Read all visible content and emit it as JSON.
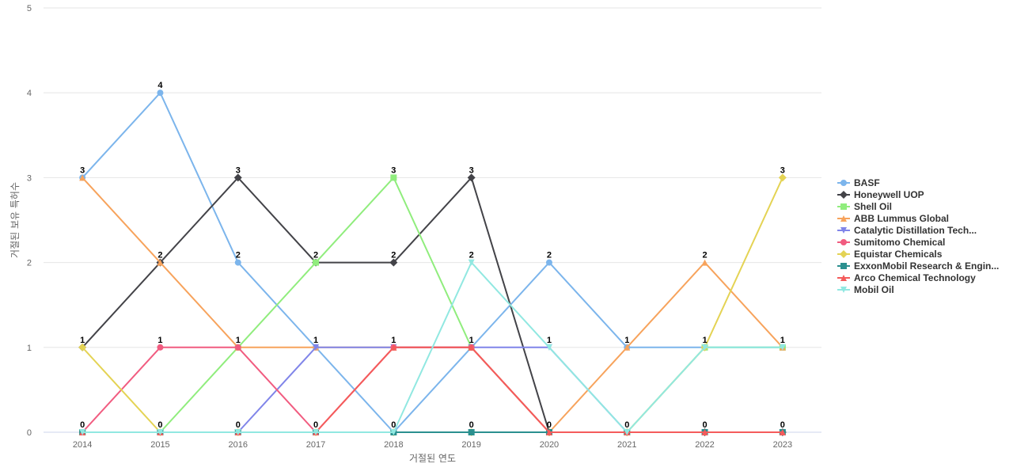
{
  "chart_data": {
    "type": "line",
    "title": "",
    "xlabel": "거절된 연도",
    "ylabel": "거절된 보유 특허수",
    "x": [
      "2014",
      "2015",
      "2016",
      "2017",
      "2018",
      "2019",
      "2020",
      "2021",
      "2022",
      "2023"
    ],
    "ylim": [
      0,
      5
    ],
    "yticks": [
      0,
      1,
      2,
      3,
      4,
      5
    ],
    "grid": true,
    "legend": "right",
    "series": [
      {
        "name": "BASF",
        "color": "#7cb5ec",
        "marker": "circle",
        "values": [
          3,
          4,
          2,
          1,
          0,
          1,
          2,
          1,
          1,
          1
        ]
      },
      {
        "name": "Honeywell UOP",
        "color": "#434348",
        "marker": "diamond",
        "values": [
          1,
          2,
          3,
          2,
          2,
          3,
          0,
          0,
          0,
          0
        ]
      },
      {
        "name": "Shell Oil",
        "color": "#90ed7d",
        "marker": "square",
        "values": [
          0,
          0,
          1,
          2,
          3,
          1,
          0,
          0,
          1,
          1
        ]
      },
      {
        "name": "ABB Lummus Global",
        "color": "#f7a35c",
        "marker": "triangle",
        "values": [
          3,
          2,
          1,
          1,
          1,
          1,
          0,
          1,
          2,
          1
        ]
      },
      {
        "name": "Catalytic Distillation Tech...",
        "color": "#8085e9",
        "marker": "triangle-down",
        "values": [
          0,
          0,
          0,
          1,
          1,
          1,
          1,
          0,
          0,
          0
        ]
      },
      {
        "name": "Sumitomo Chemical",
        "color": "#f15c80",
        "marker": "circle",
        "values": [
          0,
          1,
          1,
          0,
          1,
          1,
          0,
          0,
          0,
          0
        ]
      },
      {
        "name": "Equistar Chemicals",
        "color": "#e4d354",
        "marker": "diamond",
        "values": [
          1,
          0,
          0,
          0,
          0,
          0,
          0,
          0,
          1,
          3
        ]
      },
      {
        "name": "ExxonMobil Research & Engin...",
        "color": "#2b908f",
        "marker": "square",
        "values": [
          0,
          0,
          0,
          0,
          0,
          0,
          0,
          0,
          0,
          0
        ]
      },
      {
        "name": "Arco Chemical Technology",
        "color": "#f45b5b",
        "marker": "triangle",
        "values": [
          0,
          0,
          0,
          0,
          1,
          1,
          0,
          0,
          0,
          0
        ]
      },
      {
        "name": "Mobil Oil",
        "color": "#91e8e1",
        "marker": "triangle-down",
        "values": [
          0,
          0,
          0,
          0,
          0,
          2,
          1,
          0,
          1,
          1
        ]
      }
    ],
    "data_labels": [
      {
        "x": "2014",
        "value": 3
      },
      {
        "x": "2014",
        "value": 1
      },
      {
        "x": "2014",
        "value": 0
      },
      {
        "x": "2015",
        "value": 4
      },
      {
        "x": "2015",
        "value": 2
      },
      {
        "x": "2015",
        "value": 1
      },
      {
        "x": "2015",
        "value": 0
      },
      {
        "x": "2016",
        "value": 3
      },
      {
        "x": "2016",
        "value": 2
      },
      {
        "x": "2016",
        "value": 1
      },
      {
        "x": "2016",
        "value": 0
      },
      {
        "x": "2017",
        "value": 2
      },
      {
        "x": "2017",
        "value": 1
      },
      {
        "x": "2017",
        "value": 0
      },
      {
        "x": "2018",
        "value": 3
      },
      {
        "x": "2018",
        "value": 2
      },
      {
        "x": "2018",
        "value": 1
      },
      {
        "x": "2018",
        "value": 0
      },
      {
        "x": "2019",
        "value": 3
      },
      {
        "x": "2019",
        "value": 2
      },
      {
        "x": "2019",
        "value": 1
      },
      {
        "x": "2019",
        "value": 0
      },
      {
        "x": "2020",
        "value": 2
      },
      {
        "x": "2020",
        "value": 1
      },
      {
        "x": "2020",
        "value": 0
      },
      {
        "x": "2021",
        "value": 1
      },
      {
        "x": "2021",
        "value": 0
      },
      {
        "x": "2022",
        "value": 2
      },
      {
        "x": "2022",
        "value": 1
      },
      {
        "x": "2022",
        "value": 0
      },
      {
        "x": "2023",
        "value": 3
      },
      {
        "x": "2023",
        "value": 1
      },
      {
        "x": "2023",
        "value": 0
      }
    ]
  }
}
